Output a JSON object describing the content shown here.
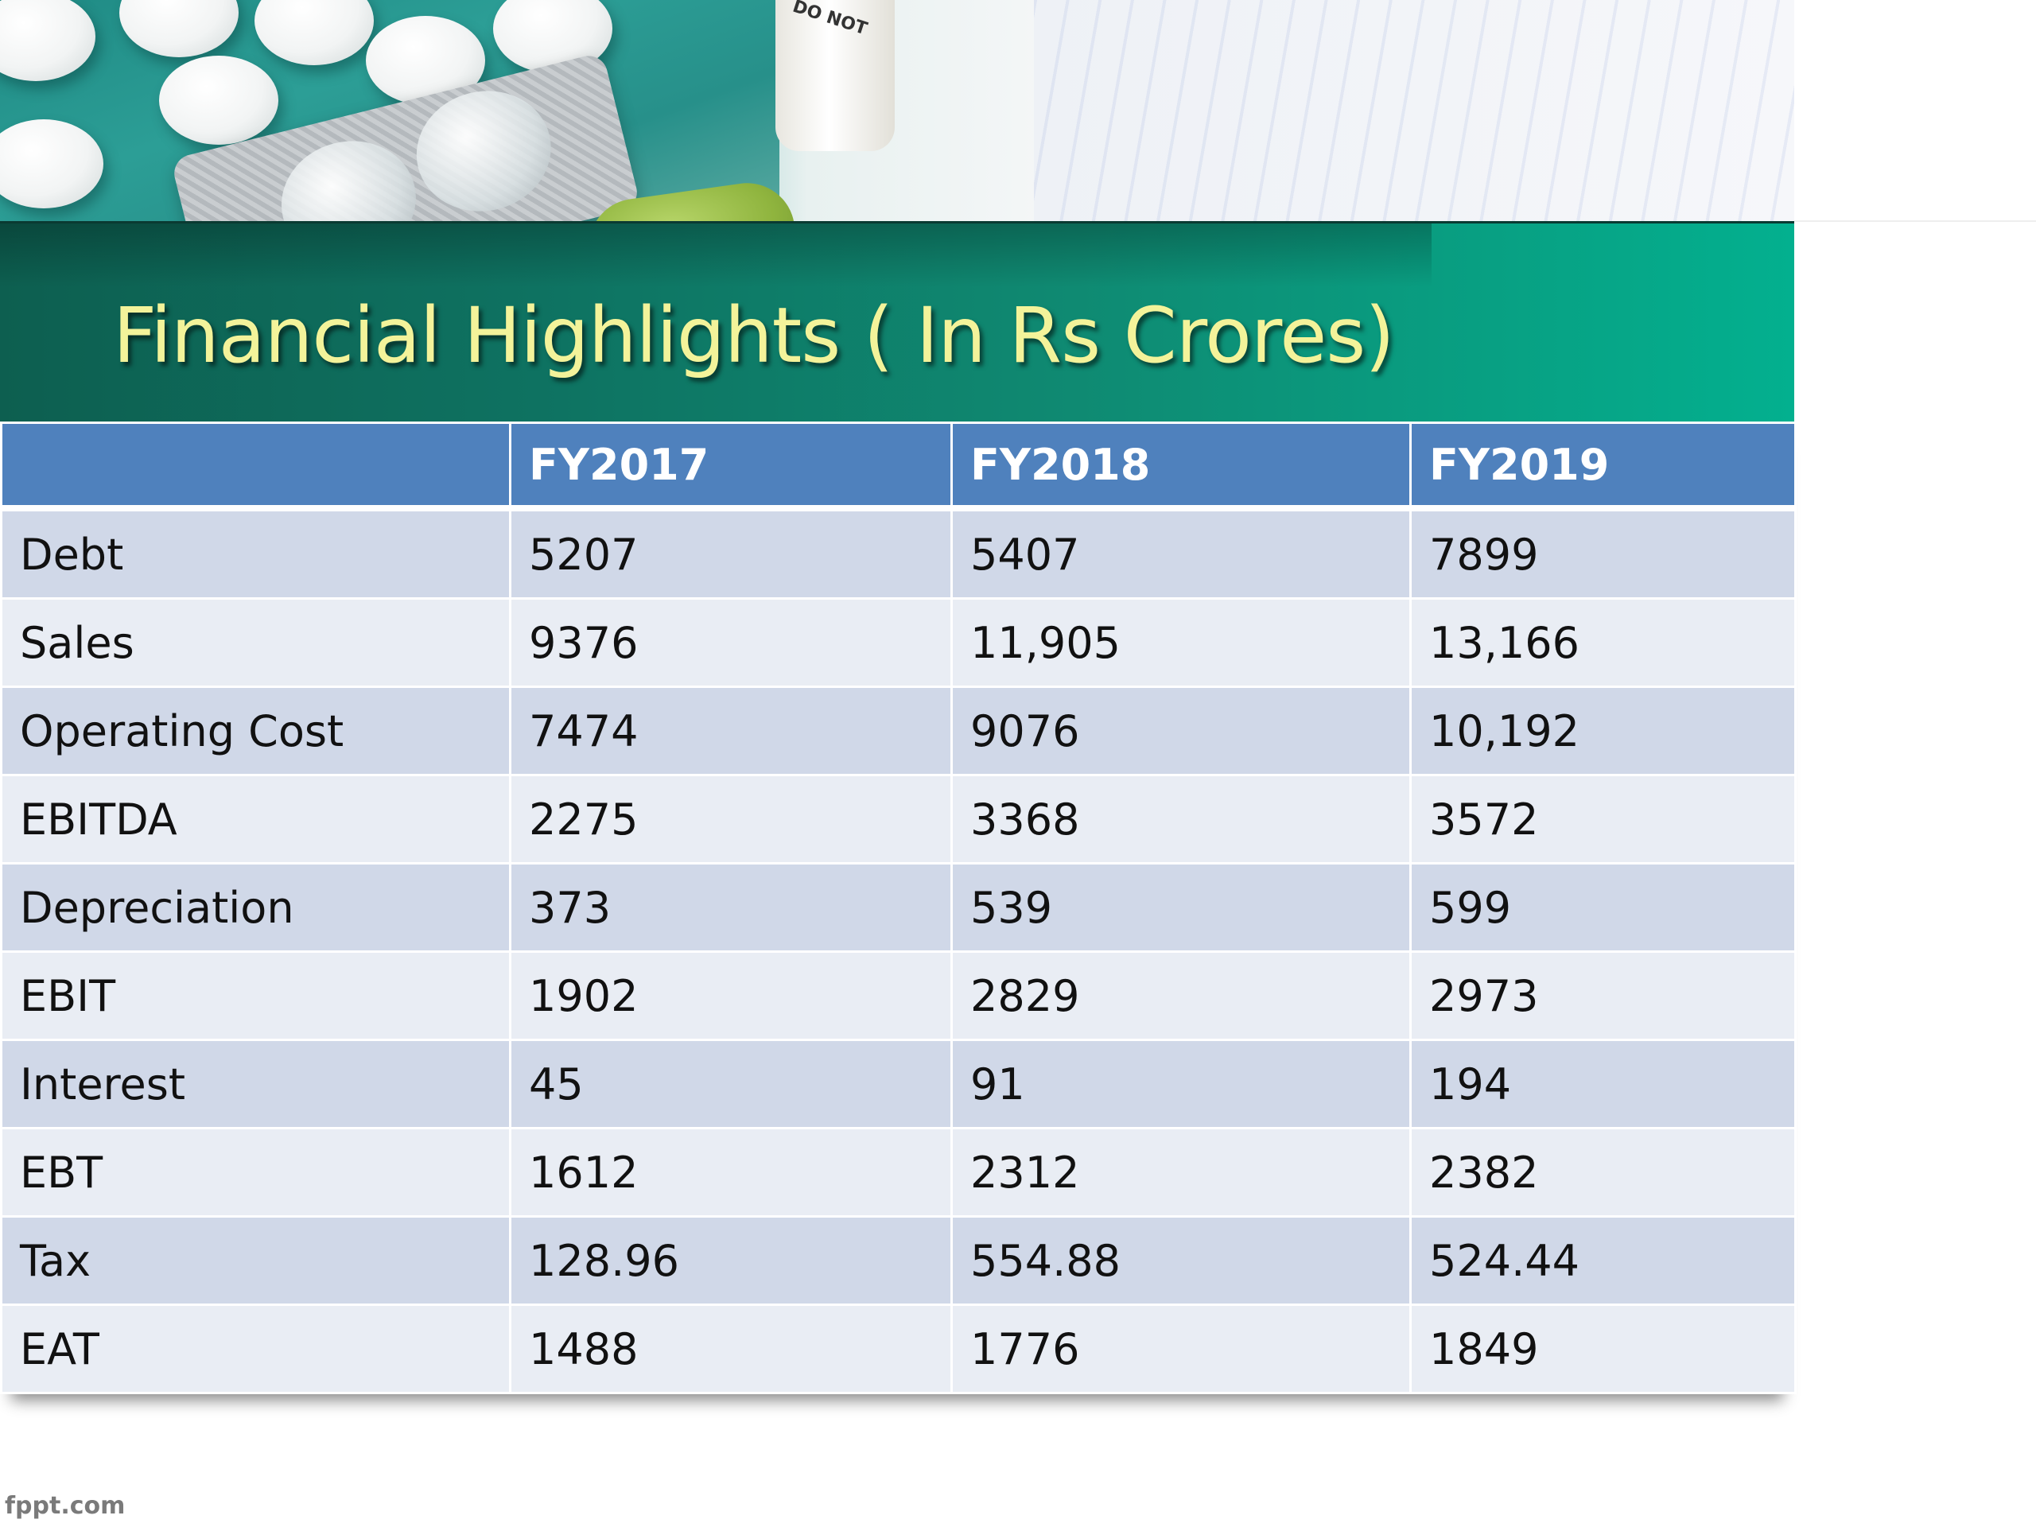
{
  "slide": {
    "title": "Financial Highlights ( In Rs Crores)",
    "footer": "fppt.com",
    "bottle_label": "DO NOT"
  },
  "colors": {
    "title_text": "#f3f39a",
    "header_fill": "#4f81bd",
    "row_odd_fill": "#d0d8e8",
    "row_even_fill": "#e9edf4",
    "band_dark": "#0d5f50",
    "band_light": "#03b08f"
  },
  "table": {
    "headers": [
      "",
      "FY2017",
      "FY2018",
      "FY2019"
    ],
    "rows": [
      {
        "label": "Debt",
        "values": [
          "5207",
          "5407",
          "7899"
        ]
      },
      {
        "label": "Sales",
        "values": [
          "9376",
          "11,905",
          "13,166"
        ]
      },
      {
        "label": "Operating Cost",
        "values": [
          "7474",
          "9076",
          "10,192"
        ]
      },
      {
        "label": "EBITDA",
        "values": [
          "2275",
          "3368",
          "3572"
        ]
      },
      {
        "label": "Depreciation",
        "values": [
          "373",
          "539",
          "599"
        ]
      },
      {
        "label": "EBIT",
        "values": [
          "1902",
          "2829",
          "2973"
        ]
      },
      {
        "label": "Interest",
        "values": [
          "45",
          "91",
          "194"
        ]
      },
      {
        "label": "EBT",
        "values": [
          "1612",
          "2312",
          "2382"
        ]
      },
      {
        "label": "Tax",
        "values": [
          "128.96",
          "554.88",
          "524.44"
        ]
      },
      {
        "label": "EAT",
        "values": [
          "1488",
          "1776",
          "1849"
        ]
      }
    ]
  }
}
